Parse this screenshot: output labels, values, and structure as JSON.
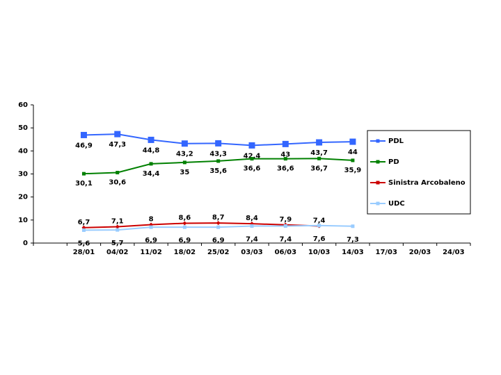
{
  "chart_data": {
    "type": "line",
    "categories": [
      null,
      "28/01",
      "04/02",
      "11/02",
      "18/02",
      "25/02",
      "03/03",
      "06/03",
      "10/03",
      "14/03",
      "17/03",
      "20/03",
      "24/03"
    ],
    "ylim": [
      0,
      60
    ],
    "yticks": [
      0,
      10,
      20,
      30,
      40,
      50,
      60
    ],
    "legend": "right",
    "series": [
      {
        "name": "PDL",
        "color": "#3366ff",
        "marker": "large-square",
        "values": [
          null,
          46.9,
          47.3,
          44.8,
          43.2,
          43.3,
          42.4,
          43,
          43.7,
          44,
          null,
          null,
          null
        ],
        "value_labels": [
          null,
          "46,9",
          "47,3",
          "44,8",
          "43,2",
          "43,3",
          "42,4",
          "43",
          "43,7",
          "44",
          null,
          null,
          null
        ]
      },
      {
        "name": "PD",
        "color": "#008000",
        "marker": "square",
        "values": [
          null,
          30.1,
          30.6,
          34.4,
          35,
          35.6,
          36.6,
          36.6,
          36.7,
          35.9,
          null,
          null,
          null
        ],
        "value_labels": [
          null,
          "30,1",
          "30,6",
          "34,4",
          "35",
          "35,6",
          "36,6",
          "36,6",
          "36,7",
          "35,9",
          null,
          null,
          null
        ]
      },
      {
        "name": "Sinistra Arcobaleno",
        "color": "#cc0000",
        "marker": "diamond",
        "values": [
          null,
          6.7,
          7.1,
          8,
          8.6,
          8.7,
          8.4,
          7.9,
          7.4,
          null,
          null,
          null,
          null
        ],
        "value_labels": [
          null,
          "6,7",
          "7,1",
          "8",
          "8,6",
          "8,7",
          "8,4",
          "7,9",
          "7,4",
          null,
          null,
          null,
          null
        ]
      },
      {
        "name": "UDC",
        "color": "#99ccff",
        "marker": "square",
        "values": [
          null,
          5.6,
          5.7,
          6.9,
          6.9,
          6.9,
          7.4,
          7.4,
          7.6,
          7.3,
          null,
          null,
          null
        ],
        "value_labels": [
          null,
          "5,6",
          "5,7",
          "6,9",
          "6,9",
          "6,9",
          "7,4",
          "7,4",
          "7,6",
          "7,3",
          null,
          null,
          null
        ]
      }
    ]
  }
}
